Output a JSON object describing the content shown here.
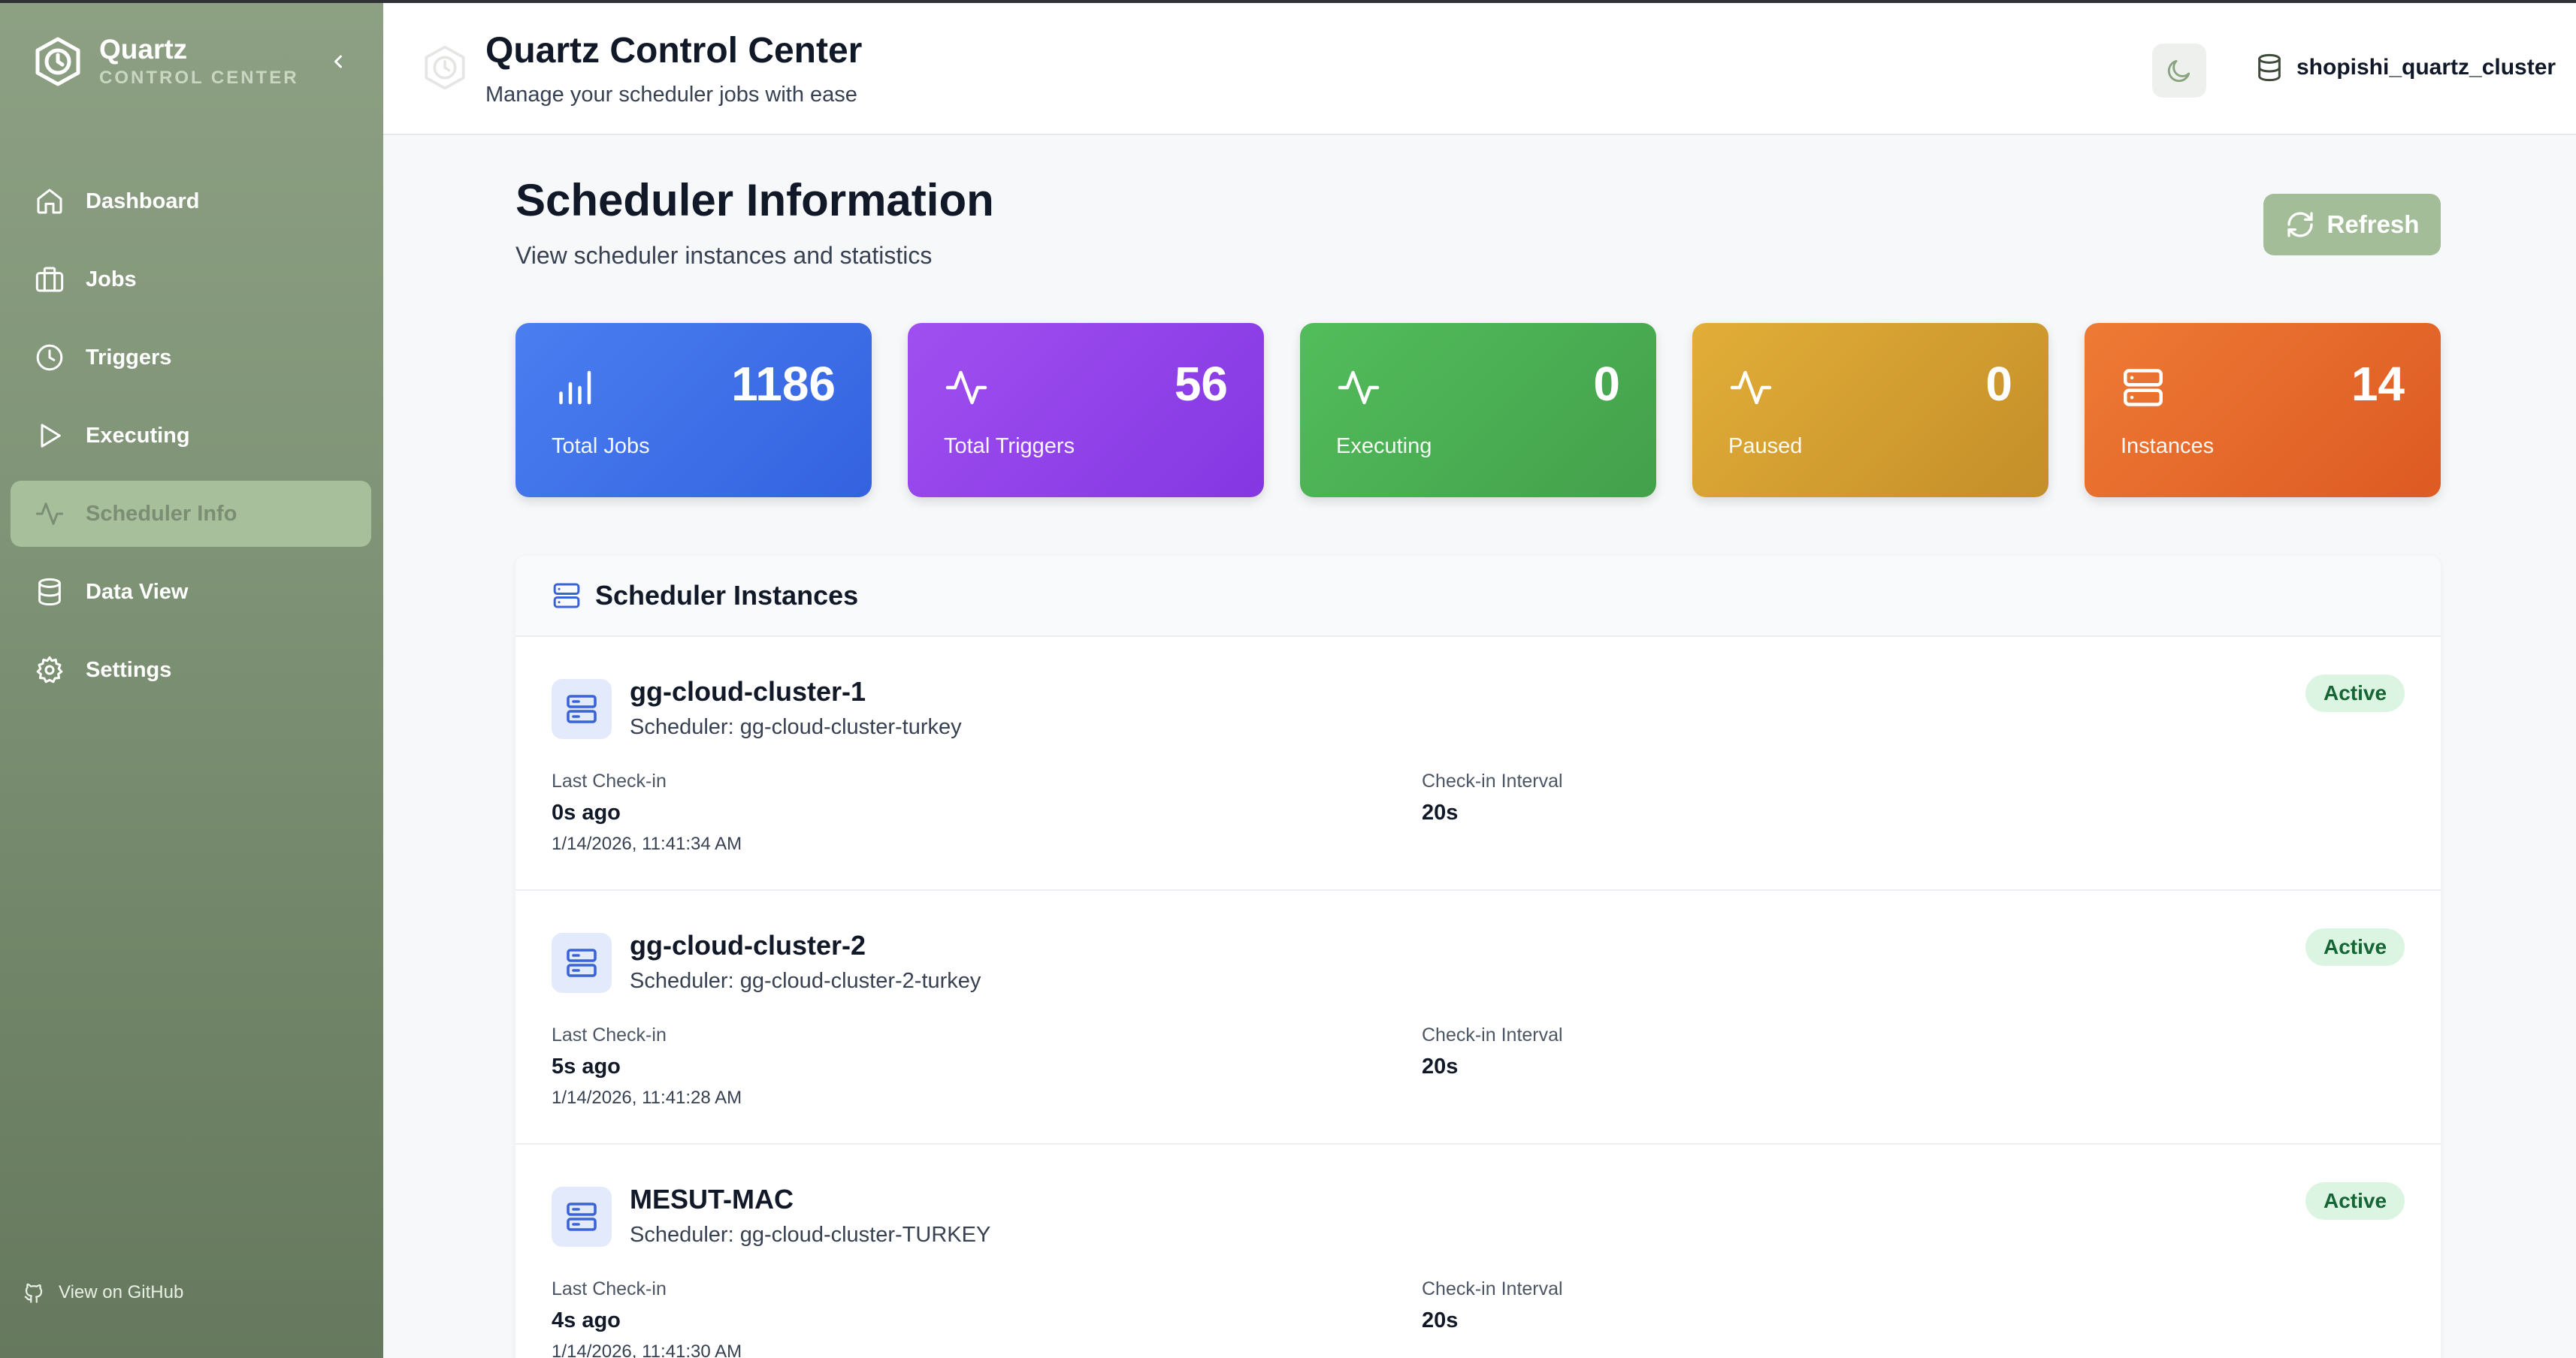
{
  "brand": {
    "title": "Quartz",
    "subtitle": "CONTROL CENTER"
  },
  "sidebar": {
    "items": [
      {
        "label": "Dashboard",
        "icon": "home-icon"
      },
      {
        "label": "Jobs",
        "icon": "briefcase-icon"
      },
      {
        "label": "Triggers",
        "icon": "clock-icon"
      },
      {
        "label": "Executing",
        "icon": "play-icon"
      },
      {
        "label": "Scheduler Info",
        "icon": "activity-icon",
        "active": true
      },
      {
        "label": "Data View",
        "icon": "database-icon"
      },
      {
        "label": "Settings",
        "icon": "gear-icon"
      }
    ],
    "github_label": "View on GitHub"
  },
  "header": {
    "title": "Quartz Control Center",
    "subtitle": "Manage your scheduler jobs with ease",
    "cluster": "shopishi_quartz_cluster"
  },
  "page": {
    "title": "Scheduler Information",
    "subtitle": "View scheduler instances and statistics",
    "refresh_label": "Refresh"
  },
  "stats": [
    {
      "value": "1186",
      "label": "Total Jobs",
      "color": "#3f6ff0"
    },
    {
      "value": "56",
      "label": "Total Triggers",
      "color": "#9144ea"
    },
    {
      "value": "0",
      "label": "Executing",
      "color": "#4bae53"
    },
    {
      "value": "0",
      "label": "Paused",
      "color": "#d39e30"
    },
    {
      "value": "14",
      "label": "Instances",
      "color": "#e66a2b"
    }
  ],
  "instances_panel": {
    "title": "Scheduler Instances",
    "last_checkin_label": "Last Check-in",
    "interval_label": "Check-in Interval",
    "items": [
      {
        "name": "gg-cloud-cluster-1",
        "scheduler": "Scheduler: gg-cloud-cluster-turkey",
        "status": "Active",
        "last_checkin": "0s ago",
        "timestamp": "1/14/2026, 11:41:34 AM",
        "interval": "20s"
      },
      {
        "name": "gg-cloud-cluster-2",
        "scheduler": "Scheduler: gg-cloud-cluster-2-turkey",
        "status": "Active",
        "last_checkin": "5s ago",
        "timestamp": "1/14/2026, 11:41:28 AM",
        "interval": "20s"
      },
      {
        "name": "MESUT-MAC",
        "scheduler": "Scheduler: gg-cloud-cluster-TURKEY",
        "status": "Active",
        "last_checkin": "4s ago",
        "timestamp": "1/14/2026, 11:41:30 AM",
        "interval": "20s"
      }
    ]
  }
}
